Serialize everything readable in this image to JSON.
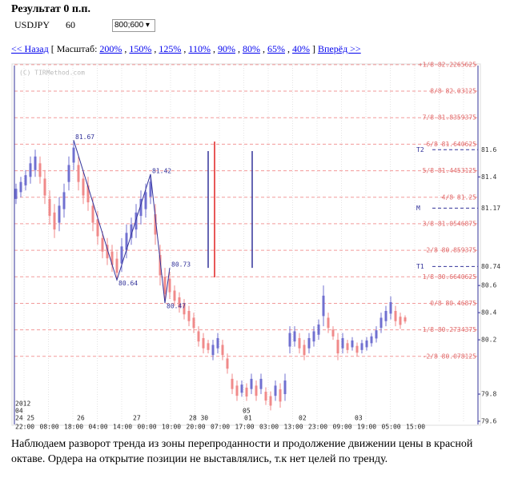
{
  "header": {
    "title": "Результат 0 п.п.",
    "symbol": "USDJPY",
    "period": "60",
    "size_select": "800;600"
  },
  "nav": {
    "back": "<< Назад",
    "scale_label": "[ Масштаб:",
    "scales": [
      "200%",
      "150%",
      "125%",
      "110%",
      "90%",
      "80%",
      "65%",
      "40%"
    ],
    "close_bracket": "]",
    "forward": "Вперёд >>"
  },
  "chart_data": {
    "type": "candlestick",
    "watermark": "(C) TIRMethod.com",
    "ylim": [
      79.6,
      82.22
    ],
    "yticks": [
      79.6,
      79.8,
      80.2,
      80.4,
      80.6,
      81.4
    ],
    "levels": [
      {
        "value": 82.2265625,
        "label": "+1/8 82.2265625"
      },
      {
        "value": 82.03125,
        "label": "8/8 82.03125"
      },
      {
        "value": 81.8359375,
        "label": "7/8 81.8359375"
      },
      {
        "value": 81.640625,
        "label": "6/8 81.640625"
      },
      {
        "value": 81.4453125,
        "label": "5/8 81.4453125"
      },
      {
        "value": 81.25,
        "label": "4/8 81.25"
      },
      {
        "value": 81.0546875,
        "label": "3/8 81.0546875"
      },
      {
        "value": 80.859375,
        "label": "2/8 80.859375"
      },
      {
        "value": 80.6640625,
        "label": "1/8 80.6640625"
      },
      {
        "value": 80.46875,
        "label": "0/8 80.46875"
      },
      {
        "value": 80.2734375,
        "label": "-1/8 80.2734375"
      },
      {
        "value": 80.078125,
        "label": "-2/8 80.078125"
      }
    ],
    "targets": [
      {
        "name": "T2",
        "value": 81.6
      },
      {
        "name": "M",
        "value": 81.17
      },
      {
        "name": "T1",
        "value": 80.74
      }
    ],
    "lows": [
      81.2,
      81.25,
      81.3,
      81.35,
      81.4,
      81.35,
      81.2,
      81.05,
      80.95,
      81.0,
      81.1,
      81.3,
      81.45,
      81.3,
      81.2,
      81.15,
      81.0,
      80.9,
      80.8,
      80.75,
      80.7,
      80.64,
      80.7,
      80.8,
      80.9,
      80.95,
      81.05,
      81.1,
      81.2,
      80.9,
      80.6,
      80.47,
      80.5,
      80.45,
      80.4,
      80.35,
      80.3,
      80.25,
      80.15,
      80.1,
      80.1,
      80.05,
      80.1,
      80.05,
      79.95,
      79.8,
      79.75,
      79.78,
      79.75,
      79.8,
      79.75,
      79.8,
      79.72,
      79.68,
      79.75,
      79.7,
      79.75,
      80.1,
      80.15,
      80.1,
      80.05,
      80.1,
      80.15,
      80.2,
      80.3,
      80.25,
      80.2,
      80.05,
      80.1,
      80.1,
      80.12,
      80.08,
      80.1,
      80.12,
      80.15,
      80.18,
      80.25,
      80.3,
      80.35,
      80.3,
      80.28,
      80.32
    ],
    "highs": [
      81.35,
      81.4,
      81.45,
      81.55,
      81.6,
      81.55,
      81.45,
      81.3,
      81.2,
      81.25,
      81.35,
      81.55,
      81.67,
      81.55,
      81.45,
      81.4,
      81.25,
      81.15,
      81.0,
      80.95,
      80.9,
      80.85,
      80.95,
      81.05,
      81.1,
      81.2,
      81.3,
      81.35,
      81.42,
      81.2,
      80.9,
      80.73,
      80.7,
      80.6,
      80.55,
      80.5,
      80.45,
      80.4,
      80.3,
      80.25,
      80.2,
      80.2,
      80.25,
      80.2,
      80.1,
      79.95,
      79.9,
      79.9,
      79.88,
      79.95,
      79.9,
      79.95,
      79.85,
      79.82,
      79.9,
      79.88,
      79.95,
      80.3,
      80.3,
      80.25,
      80.2,
      80.25,
      80.3,
      80.35,
      80.6,
      80.4,
      80.3,
      80.25,
      80.25,
      80.2,
      80.22,
      80.18,
      80.2,
      80.22,
      80.25,
      80.3,
      80.4,
      80.45,
      80.52,
      80.45,
      80.4,
      80.38
    ],
    "zigzag": {
      "x": [
        12,
        21,
        28,
        31,
        32
      ],
      "values": [
        81.67,
        80.64,
        81.42,
        80.47,
        80.73
      ]
    },
    "signals": [
      {
        "color": "#33339a",
        "high": 81.59,
        "low": 80.73
      },
      {
        "color": "#e02020",
        "high": 81.66,
        "low": 80.66
      },
      {
        "color": "#33339a",
        "high": 81.59,
        "low": 80.73
      }
    ],
    "x_axis": {
      "year": "2012",
      "month": "04",
      "month2": "05",
      "days": [
        "24 25",
        "26",
        "27",
        "28 30",
        "01",
        "02",
        "03"
      ],
      "times": [
        "22:00",
        "08:00",
        "18:00",
        "04:00",
        "14:00",
        "00:00",
        "10:00",
        "20:00",
        "07:00",
        "17:00",
        "03:00",
        "13:00",
        "23:00",
        "09:00",
        "19:00",
        "05:00",
        "15:00"
      ]
    }
  },
  "comment": "Наблюдаем разворот тренда из зоны перепроданности и продолжение движении цены в красной октаве. Ордера на открытие позиции не выставлялись, т.к нет целей по тренду."
}
